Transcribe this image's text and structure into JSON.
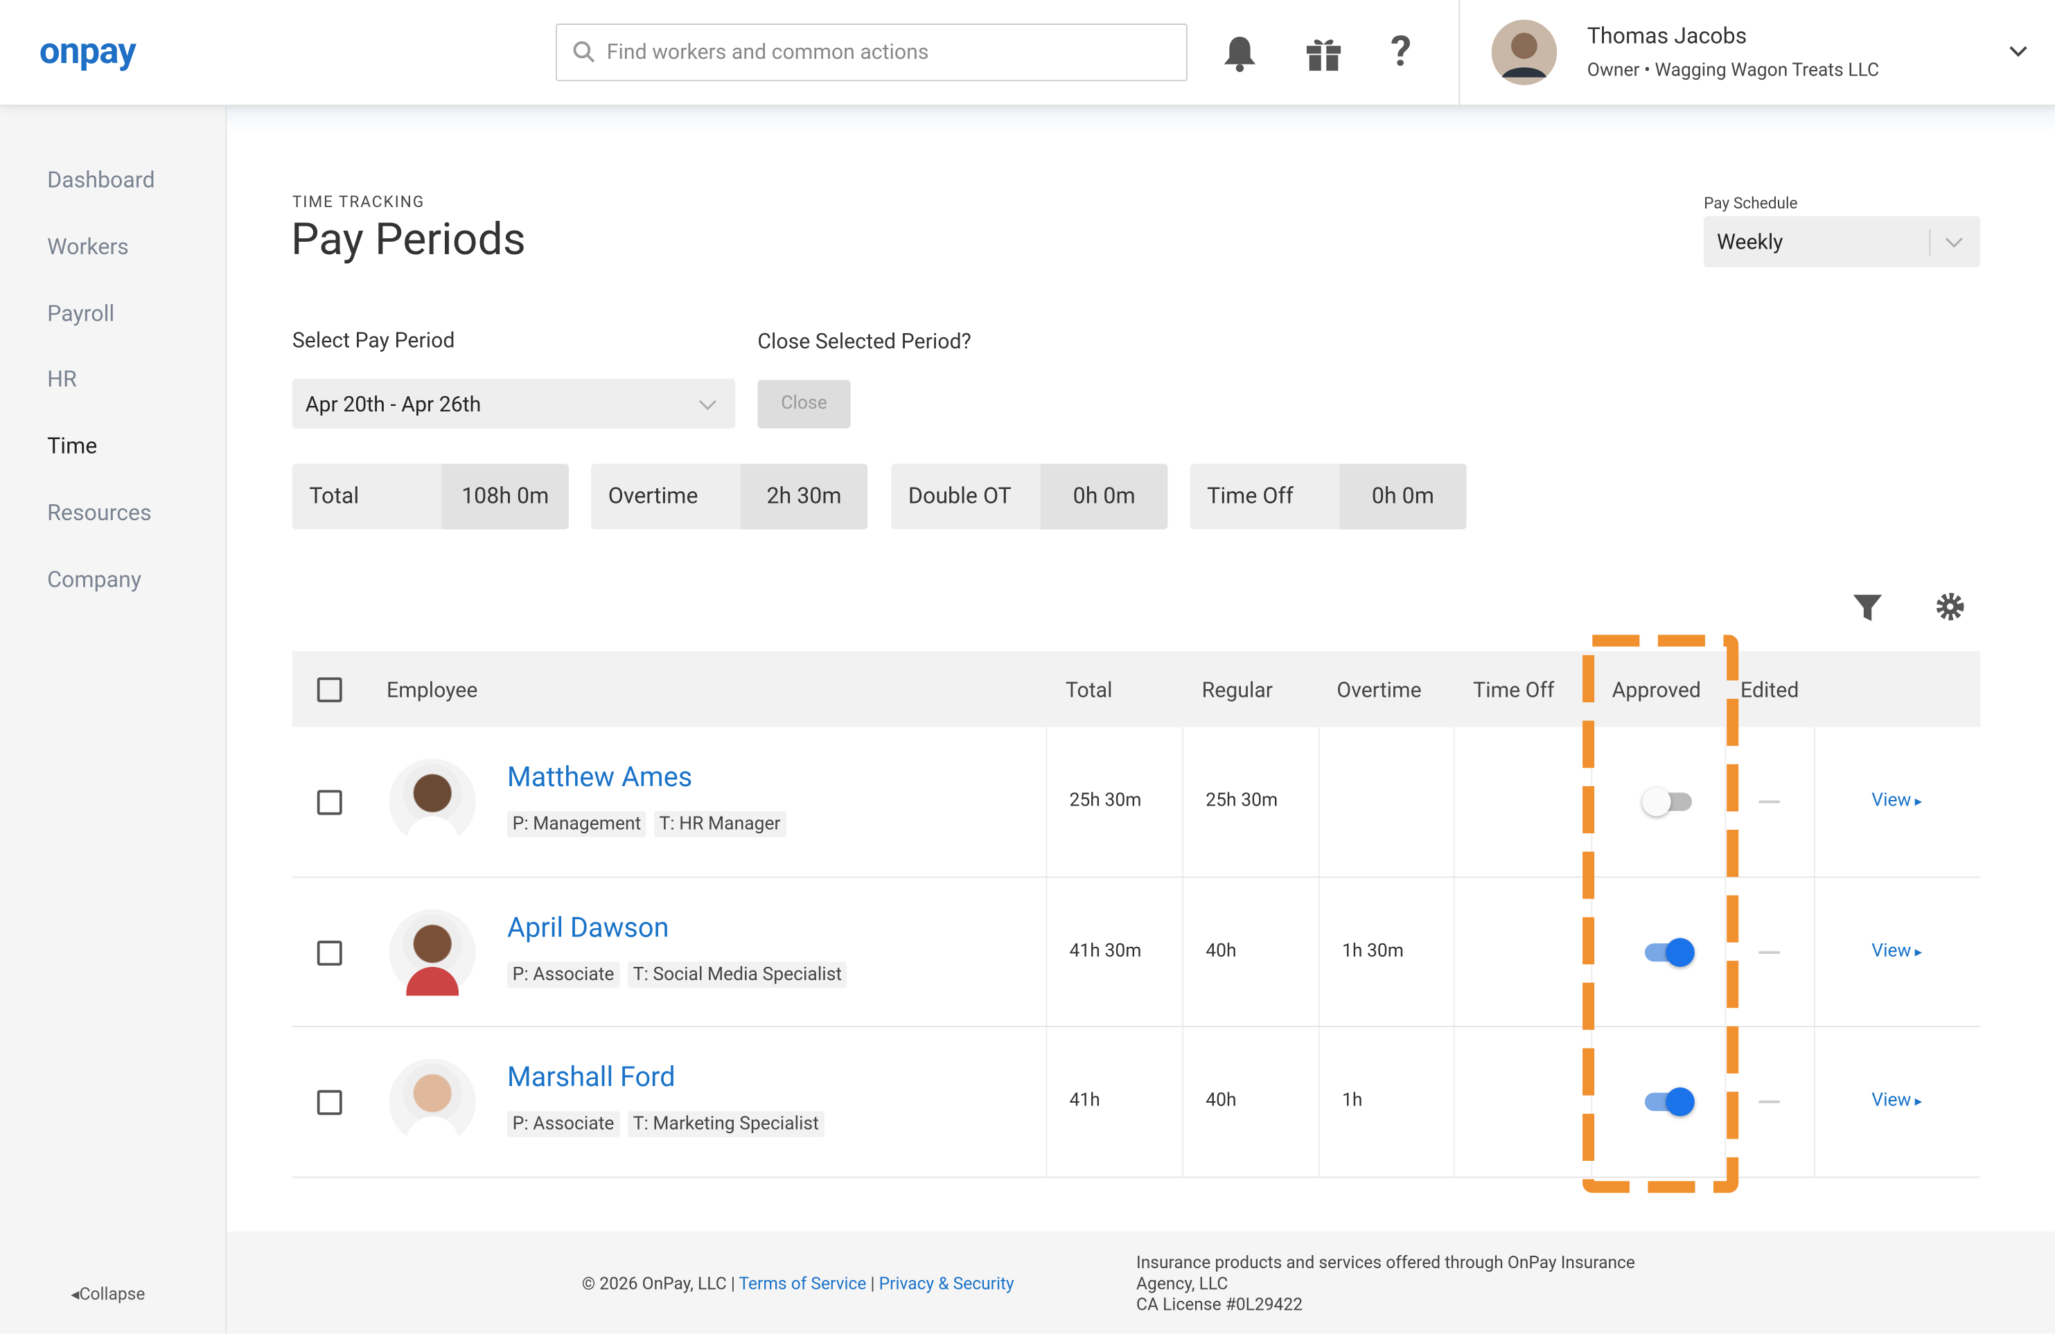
{
  "header": {
    "logo": "onpay",
    "search_placeholder": "Find workers and common actions",
    "user_name": "Thomas Jacobs",
    "user_role": "Owner • Wagging Wagon Treats LLC"
  },
  "sidebar": {
    "items": [
      "Dashboard",
      "Workers",
      "Payroll",
      "HR",
      "Time",
      "Resources",
      "Company"
    ],
    "active_index": 4,
    "collapse": "Collapse"
  },
  "page": {
    "eyebrow": "TIME TRACKING",
    "title": "Pay Periods",
    "pay_schedule_label": "Pay Schedule",
    "pay_schedule": "Weekly",
    "select_label": "Select Pay Period",
    "period": "Apr 20th - Apr 26th",
    "close_label": "Close Selected Period?",
    "close_button": "Close"
  },
  "summary": [
    {
      "label": "Total",
      "value": "108h 0m"
    },
    {
      "label": "Overtime",
      "value": "2h 30m"
    },
    {
      "label": "Double OT",
      "value": "0h 0m"
    },
    {
      "label": "Time Off",
      "value": "0h 0m"
    }
  ],
  "table": {
    "columns": [
      "Employee",
      "Total",
      "Regular",
      "Overtime",
      "Time Off",
      "Approved",
      "Edited"
    ],
    "rows": [
      {
        "name": "Matthew Ames",
        "position": "P: Management",
        "title": "T: HR Manager",
        "total": "25h 30m",
        "regular": "25h 30m",
        "overtime": null,
        "approved": false,
        "view": "View"
      },
      {
        "name": "April Dawson",
        "position": "P: Associate",
        "title": "T: Social Media Specialist",
        "total": "41h 30m",
        "regular": "40h",
        "overtime": "1h 30m",
        "approved": true,
        "view": "View"
      },
      {
        "name": "Marshall Ford",
        "position": "P: Associate",
        "title": "T: Marketing Specialist",
        "total": "41h",
        "regular": "40h",
        "overtime": "1h",
        "approved": true,
        "view": "View"
      }
    ]
  },
  "footer": {
    "copyright": "© 2026 OnPay, LLC |",
    "terms": "Terms of Service",
    "separator": "|",
    "privacy": "Privacy & Security",
    "insurance": "Insurance products and services offered through OnPay Insurance Agency, LLC",
    "license": "CA License #0L29422"
  }
}
